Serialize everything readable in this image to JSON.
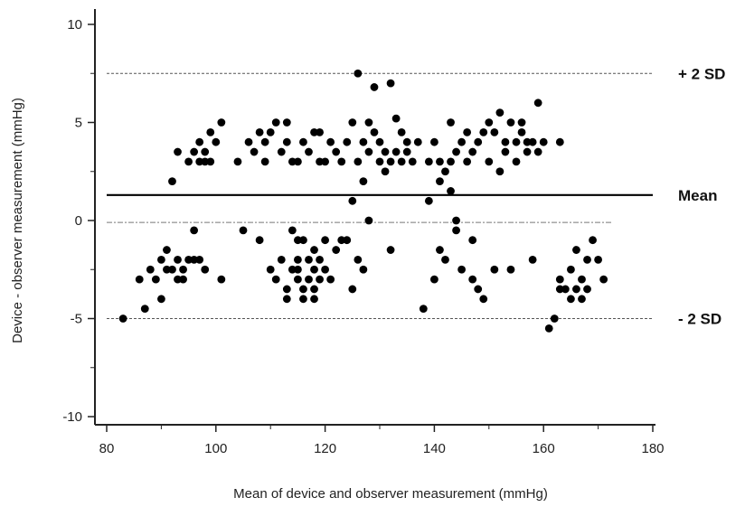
{
  "chart_data": {
    "type": "scatter",
    "title": "",
    "xlabel": "Mean of device and observer measurement  (mmHg)",
    "ylabel": "Device - observer measurement (mmHg)",
    "xlim": [
      80,
      180
    ],
    "ylim": [
      -10,
      10
    ],
    "x_ticks": [
      80,
      100,
      120,
      140,
      160,
      180
    ],
    "x_tick_labels": [
      "80",
      "100",
      "120",
      "140",
      "160",
      "180"
    ],
    "y_ticks": [
      -10,
      -5,
      0,
      5,
      10
    ],
    "y_tick_labels": [
      "-10",
      "-5",
      "0",
      "5",
      "10"
    ],
    "grid": false,
    "point_color": "#000000",
    "reference_lines": [
      {
        "label": "+ 2 SD",
        "y": 7.5,
        "style": "dashed"
      },
      {
        "label": "Mean",
        "y": 1.3,
        "style": "solid"
      },
      {
        "label": "",
        "y": -0.1,
        "style": "dashdot"
      },
      {
        "label": "- 2 SD",
        "y": -5.0,
        "style": "dashed"
      }
    ],
    "points": [
      [
        83,
        -5
      ],
      [
        86,
        -3
      ],
      [
        87,
        -4.5
      ],
      [
        88,
        -2.5
      ],
      [
        89,
        -3
      ],
      [
        90,
        -2
      ],
      [
        90,
        -4
      ],
      [
        91,
        -1.5
      ],
      [
        91,
        -2.5
      ],
      [
        92,
        2
      ],
      [
        92,
        -2.5
      ],
      [
        93,
        -3
      ],
      [
        93,
        -2
      ],
      [
        93,
        3.5
      ],
      [
        94,
        -3
      ],
      [
        94,
        -2.5
      ],
      [
        95,
        3
      ],
      [
        95,
        -2
      ],
      [
        96,
        -0.5
      ],
      [
        96,
        3.5
      ],
      [
        96,
        -2
      ],
      [
        97,
        4
      ],
      [
        97,
        3
      ],
      [
        97,
        -2
      ],
      [
        98,
        3.5
      ],
      [
        98,
        -2.5
      ],
      [
        98,
        3
      ],
      [
        99,
        4.5
      ],
      [
        99,
        3
      ],
      [
        100,
        4
      ],
      [
        101,
        5
      ],
      [
        101,
        -3
      ],
      [
        104,
        3
      ],
      [
        105,
        -0.5
      ],
      [
        106,
        4
      ],
      [
        107,
        3.5
      ],
      [
        108,
        4.5
      ],
      [
        108,
        -1
      ],
      [
        109,
        3
      ],
      [
        109,
        4
      ],
      [
        110,
        4.5
      ],
      [
        110,
        -2.5
      ],
      [
        111,
        5
      ],
      [
        111,
        -3
      ],
      [
        112,
        3.5
      ],
      [
        112,
        -2
      ],
      [
        113,
        4
      ],
      [
        113,
        5
      ],
      [
        113,
        -3.5
      ],
      [
        113,
        -4
      ],
      [
        114,
        3
      ],
      [
        114,
        -0.5
      ],
      [
        114,
        -2.5
      ],
      [
        115,
        3
      ],
      [
        115,
        -1
      ],
      [
        115,
        -2
      ],
      [
        115,
        -2.5
      ],
      [
        115,
        -3
      ],
      [
        116,
        4
      ],
      [
        116,
        -1
      ],
      [
        116,
        -3.5
      ],
      [
        116,
        -4
      ],
      [
        117,
        3.5
      ],
      [
        117,
        -2
      ],
      [
        117,
        -3
      ],
      [
        118,
        4.5
      ],
      [
        118,
        -2.5
      ],
      [
        118,
        -1.5
      ],
      [
        118,
        -3.5
      ],
      [
        118,
        -4
      ],
      [
        119,
        4.5
      ],
      [
        119,
        3
      ],
      [
        119,
        -2
      ],
      [
        119,
        -3
      ],
      [
        120,
        3
      ],
      [
        120,
        -2.5
      ],
      [
        120,
        -1
      ],
      [
        121,
        4
      ],
      [
        121,
        -3
      ],
      [
        122,
        3.5
      ],
      [
        122,
        -1.5
      ],
      [
        123,
        3
      ],
      [
        123,
        -1
      ],
      [
        124,
        4
      ],
      [
        124,
        -1
      ],
      [
        125,
        5
      ],
      [
        125,
        1
      ],
      [
        125,
        -3.5
      ],
      [
        126,
        7.5
      ],
      [
        126,
        3
      ],
      [
        126,
        -2
      ],
      [
        127,
        4
      ],
      [
        127,
        2
      ],
      [
        127,
        -2.5
      ],
      [
        128,
        5
      ],
      [
        128,
        3.5
      ],
      [
        128,
        0
      ],
      [
        129,
        4.5
      ],
      [
        129,
        6.8
      ],
      [
        130,
        3
      ],
      [
        130,
        4
      ],
      [
        131,
        3.5
      ],
      [
        131,
        2.5
      ],
      [
        132,
        7
      ],
      [
        132,
        3
      ],
      [
        132,
        -1.5
      ],
      [
        133,
        3.5
      ],
      [
        133,
        5.2
      ],
      [
        134,
        4.5
      ],
      [
        134,
        3
      ],
      [
        135,
        3.5
      ],
      [
        135,
        4
      ],
      [
        136,
        3
      ],
      [
        137,
        4
      ],
      [
        138,
        -4.5
      ],
      [
        139,
        3
      ],
      [
        139,
        1
      ],
      [
        140,
        4
      ],
      [
        140,
        -3
      ],
      [
        141,
        3
      ],
      [
        141,
        2
      ],
      [
        141,
        -1.5
      ],
      [
        142,
        2.5
      ],
      [
        142,
        -2
      ],
      [
        143,
        1.5
      ],
      [
        143,
        3
      ],
      [
        143,
        5
      ],
      [
        144,
        -0.5
      ],
      [
        144,
        0
      ],
      [
        144,
        3.5
      ],
      [
        145,
        4
      ],
      [
        145,
        -2.5
      ],
      [
        146,
        4.5
      ],
      [
        146,
        3
      ],
      [
        147,
        -1
      ],
      [
        147,
        -3
      ],
      [
        147,
        3.5
      ],
      [
        148,
        4
      ],
      [
        148,
        -3.5
      ],
      [
        149,
        4.5
      ],
      [
        149,
        -4
      ],
      [
        150,
        3
      ],
      [
        150,
        5
      ],
      [
        151,
        4.5
      ],
      [
        151,
        -2.5
      ],
      [
        152,
        5.5
      ],
      [
        152,
        2.5
      ],
      [
        153,
        3.5
      ],
      [
        153,
        4
      ],
      [
        154,
        5
      ],
      [
        154,
        -2.5
      ],
      [
        155,
        3
      ],
      [
        155,
        4
      ],
      [
        156,
        4.5
      ],
      [
        156,
        5
      ],
      [
        157,
        3.5
      ],
      [
        157,
        4
      ],
      [
        158,
        -2
      ],
      [
        158,
        4
      ],
      [
        159,
        6
      ],
      [
        159,
        3.5
      ],
      [
        160,
        4
      ],
      [
        161,
        -5.5
      ],
      [
        162,
        -5
      ],
      [
        163,
        4
      ],
      [
        163,
        -3
      ],
      [
        163,
        -3.5
      ],
      [
        164,
        -3.5
      ],
      [
        165,
        -4
      ],
      [
        165,
        -2.5
      ],
      [
        166,
        -1.5
      ],
      [
        166,
        -3.5
      ],
      [
        167,
        -3
      ],
      [
        167,
        -4
      ],
      [
        168,
        -3.5
      ],
      [
        168,
        -2
      ],
      [
        169,
        -1
      ],
      [
        170,
        -2
      ],
      [
        171,
        -3
      ]
    ]
  }
}
